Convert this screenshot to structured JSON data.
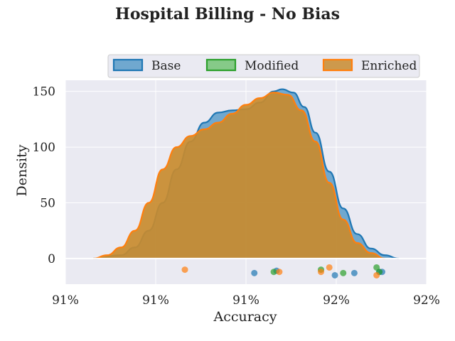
{
  "chart_data": {
    "type": "area",
    "title": "Hospital Billing - No Bias",
    "xlabel": "Accuracy",
    "ylabel": "Density",
    "x_tick_labels": [
      "91%",
      "91%",
      "91%",
      "92%",
      "92%"
    ],
    "y_tick_labels": [
      "0",
      "50",
      "100",
      "150"
    ],
    "yticks": [
      0,
      50,
      100,
      150
    ],
    "ylim": [
      -23,
      160
    ],
    "grid": true,
    "legend_position": "top-right",
    "series": [
      {
        "name": "Base",
        "color": "#1f77b4",
        "fill_color": "#5b9cc9",
        "density": [
          [
            0.1,
            0
          ],
          [
            0.2,
            3
          ],
          [
            0.25,
            10
          ],
          [
            0.3,
            25
          ],
          [
            0.35,
            50
          ],
          [
            0.4,
            80
          ],
          [
            0.45,
            105
          ],
          [
            0.5,
            122
          ],
          [
            0.55,
            131
          ],
          [
            0.6,
            133
          ],
          [
            0.65,
            134
          ],
          [
            0.7,
            140
          ],
          [
            0.75,
            150
          ],
          [
            0.78,
            152
          ],
          [
            0.82,
            149
          ],
          [
            0.86,
            136
          ],
          [
            0.9,
            113
          ],
          [
            0.95,
            78
          ],
          [
            1.0,
            45
          ],
          [
            1.05,
            22
          ],
          [
            1.1,
            9
          ],
          [
            1.15,
            3
          ],
          [
            1.2,
            0
          ]
        ],
        "points": [
          [
            0.68,
            -13
          ],
          [
            0.76,
            -11
          ],
          [
            0.97,
            -15
          ],
          [
            1.04,
            -13
          ],
          [
            1.13,
            -12
          ],
          [
            1.14,
            -12
          ]
        ]
      },
      {
        "name": "Modified",
        "color": "#2ca02c",
        "fill_color": "#74c476",
        "density": [],
        "points": [
          [
            0.75,
            -12
          ],
          [
            0.92,
            -10
          ],
          [
            1.0,
            -13
          ],
          [
            1.12,
            -8
          ],
          [
            1.13,
            -12
          ]
        ]
      },
      {
        "name": "Enriched",
        "color": "#ff7f0e",
        "fill_color": "#c88b2f",
        "density": [
          [
            0.1,
            0
          ],
          [
            0.15,
            3
          ],
          [
            0.2,
            10
          ],
          [
            0.25,
            25
          ],
          [
            0.3,
            50
          ],
          [
            0.35,
            80
          ],
          [
            0.4,
            100
          ],
          [
            0.45,
            110
          ],
          [
            0.5,
            116
          ],
          [
            0.55,
            122
          ],
          [
            0.6,
            130
          ],
          [
            0.65,
            138
          ],
          [
            0.7,
            144
          ],
          [
            0.75,
            149
          ],
          [
            0.8,
            147
          ],
          [
            0.85,
            133
          ],
          [
            0.9,
            105
          ],
          [
            0.95,
            68
          ],
          [
            1.0,
            35
          ],
          [
            1.05,
            14
          ],
          [
            1.1,
            5
          ],
          [
            1.15,
            0
          ]
        ],
        "points": [
          [
            0.43,
            -10
          ],
          [
            0.77,
            -12
          ],
          [
            0.92,
            -12
          ],
          [
            0.95,
            -8
          ],
          [
            1.12,
            -15
          ]
        ]
      }
    ]
  }
}
